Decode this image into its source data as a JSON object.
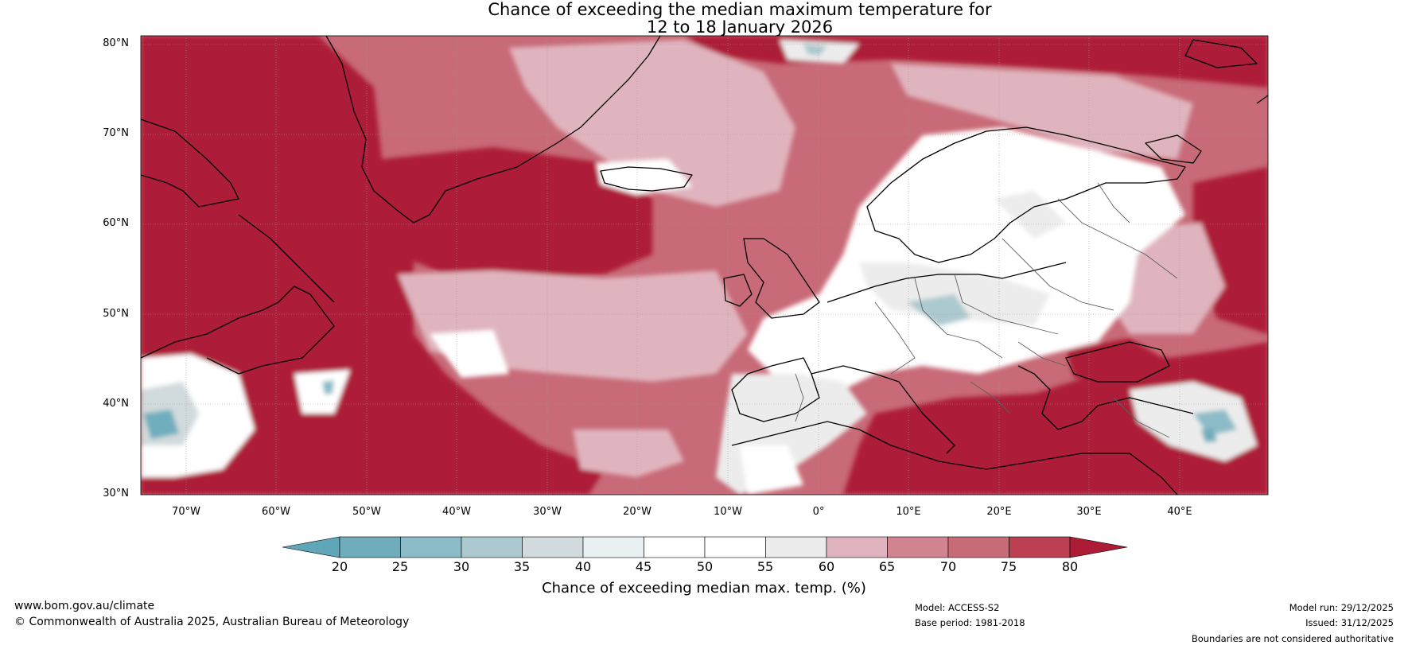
{
  "title": {
    "line1": "Chance of exceeding the median maximum temperature for",
    "line2": "12 to 18 January 2026"
  },
  "map": {
    "latitude_labels": [
      "80°N",
      "70°N",
      "60°N",
      "50°N",
      "40°N",
      "30°N"
    ],
    "longitude_labels": [
      "70°W",
      "60°W",
      "50°W",
      "40°W",
      "30°W",
      "20°W",
      "10°W",
      "0°",
      "10°E",
      "20°E",
      "30°E",
      "40°E"
    ]
  },
  "colorbar": {
    "ticks": [
      "20",
      "25",
      "30",
      "35",
      "40",
      "45",
      "50",
      "55",
      "60",
      "65",
      "70",
      "75",
      "80"
    ],
    "colors": [
      "#5ea6b8",
      "#6fadbd",
      "#8bbcc8",
      "#acc9cf",
      "#d1dadc",
      "#e9f0f2",
      "#ffffff",
      "#ffffff",
      "#ececec",
      "#e0b4be",
      "#d1838f",
      "#c86a77",
      "#bc4052",
      "#ad1c37",
      "#ad1c37"
    ],
    "label": "Chance of exceeding median max. temp. (%)"
  },
  "footer": {
    "website": "www.bom.gov.au/climate",
    "copyright": "© Commonwealth of Australia 2025, Australian Bureau of Meteorology",
    "model": "Model: ACCESS-S2",
    "base_period": "Base period: 1981-2018",
    "model_run": "Model run: 29/12/2025",
    "issued": "Issued: 31/12/2025",
    "disclaimer": "Boundaries are not considered authoritative"
  },
  "colors": {
    "warm_dark": "#ad1c37",
    "warm_mid": "#c86a77",
    "warm_light": "#e0b4be",
    "neutral": "#ffffff",
    "cool_light": "#d1dadc",
    "cool_dark": "#5ea6b8"
  }
}
